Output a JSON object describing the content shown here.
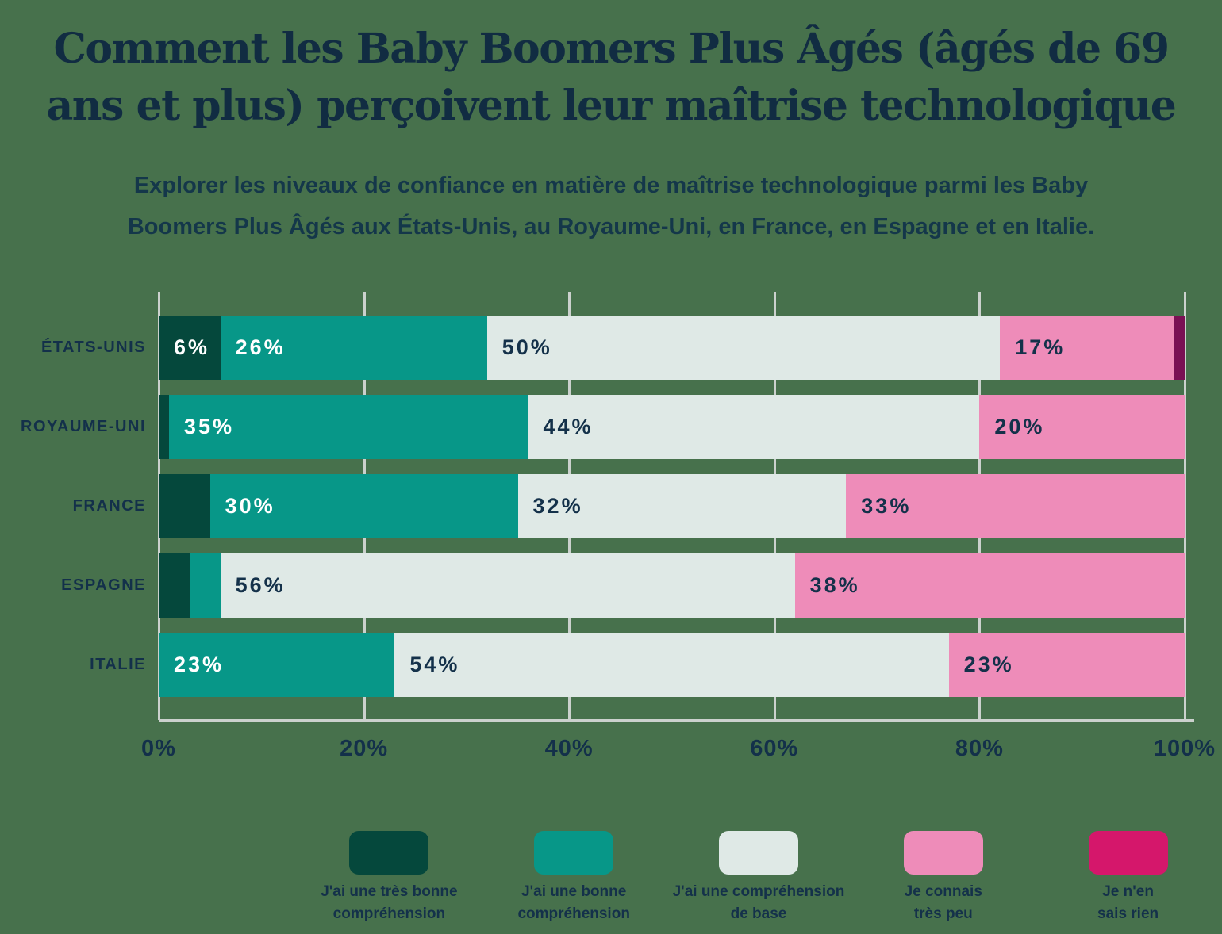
{
  "title": {
    "line1": "Comment les Baby Boomers Plus Âgés (âgés de 69",
    "line2": "ans et plus) perçoivent leur maîtrise technologique"
  },
  "subtitle": {
    "line1": "Explorer les niveaux de confiance en matière de maîtrise technologique parmi les Baby",
    "line2": "Boomers Plus Âgés aux États-Unis, au Royaume-Uni, en France, en Espagne et en Italie."
  },
  "chart_data": {
    "type": "bar",
    "orientation": "horizontal-stacked",
    "categories": [
      "ÉTATS-UNIS",
      "ROYAUME-UNI",
      "FRANCE",
      "ESPAGNE",
      "ITALIE"
    ],
    "series": [
      {
        "name": "J'ai une très bonne compréhension",
        "legend_label": "J'ai une très bonne\ncompréhension",
        "color": "#05483C",
        "label_color": "#FFFFFF",
        "values": [
          6,
          1,
          5,
          3,
          0
        ]
      },
      {
        "name": "J'ai une bonne compréhension",
        "legend_label": "J'ai une bonne\ncompréhension",
        "color": "#079788",
        "label_color": "#FFFFFF",
        "values": [
          26,
          35,
          30,
          3,
          23
        ]
      },
      {
        "name": "J'ai une compréhension de base",
        "legend_label": "J'ai une compréhension\nde base",
        "color": "#DFE9E6",
        "label_color": "#14314A",
        "values": [
          50,
          44,
          32,
          56,
          54
        ]
      },
      {
        "name": "Je connais très peu",
        "legend_label": "Je connais\ntrès peu",
        "color": "#EE8CB9",
        "label_color": "#14314A",
        "values": [
          17,
          20,
          33,
          38,
          23
        ]
      },
      {
        "name": "Je n'en sais rien",
        "legend_label": "Je n'en\nsais rien",
        "color": "#7A1054",
        "legend_color": "#D5176B",
        "label_color": "#FFFFFF",
        "values": [
          1,
          0,
          0,
          0,
          0
        ]
      }
    ],
    "x_ticks": [
      "0%",
      "20%",
      "40%",
      "60%",
      "80%",
      "100%"
    ],
    "xlim": [
      0,
      100
    ],
    "grid": true,
    "label_min_value": 6,
    "legend_position": "bottom"
  },
  "colors": {
    "background": "#47714C",
    "title_text": "#112C42",
    "subtitle_text": "#14374A",
    "axis_text": "#13304A",
    "gridline": "#CBD1CD"
  }
}
